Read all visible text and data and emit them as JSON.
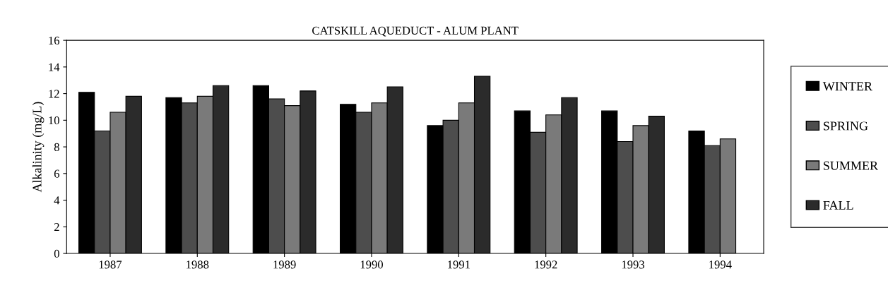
{
  "chart_data": {
    "type": "bar",
    "title": "CATSKILL AQUEDUCT - ALUM PLANT",
    "ylabel": "Alkalinity (mg/L)",
    "categories": [
      "1987",
      "1988",
      "1989",
      "1990",
      "1991",
      "1992",
      "1993",
      "1994"
    ],
    "series": [
      {
        "name": "WINTER",
        "color": "#000000",
        "values": [
          12.1,
          11.7,
          12.6,
          11.2,
          9.6,
          10.7,
          10.7,
          9.2
        ]
      },
      {
        "name": "SPRING",
        "color": "#4d4d4d",
        "values": [
          9.2,
          11.3,
          11.6,
          10.6,
          10.0,
          9.1,
          8.4,
          8.1
        ]
      },
      {
        "name": "SUMMER",
        "color": "#7a7a7a",
        "values": [
          10.6,
          11.8,
          11.1,
          11.3,
          11.3,
          10.4,
          9.6,
          8.6
        ]
      },
      {
        "name": "FALL",
        "color": "#2b2b2b",
        "values": [
          11.8,
          12.6,
          12.2,
          12.5,
          13.3,
          11.7,
          10.3,
          null
        ]
      }
    ],
    "ylim": [
      0,
      16
    ],
    "yticks": [
      0,
      2,
      4,
      6,
      8,
      10,
      12,
      14,
      16
    ],
    "grid": false,
    "legend": "right"
  }
}
